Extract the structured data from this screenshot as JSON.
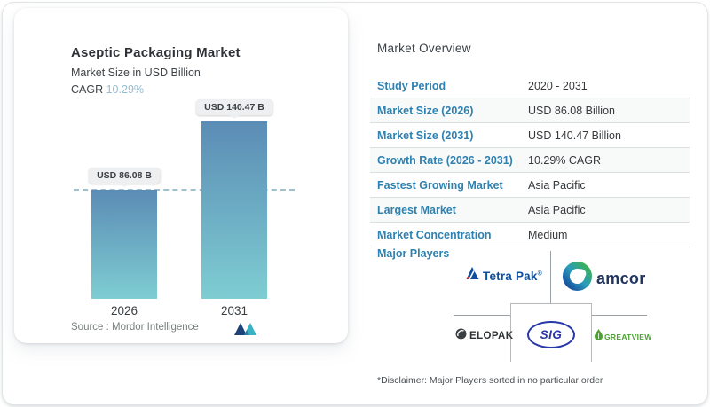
{
  "chart_card": {
    "title": "Aseptic Packaging Market",
    "subtitle": "Market Size in USD Billion",
    "cagr_label": "CAGR",
    "cagr_value": "10.29%",
    "source_label": "Source :",
    "source_name": "Mordor Intelligence"
  },
  "chart_data": {
    "type": "bar",
    "title": "Aseptic Packaging Market",
    "ylabel": "Market Size in USD Billion",
    "unit": "USD Billion",
    "cagr_percent": "10.29%",
    "categories": [
      "2026",
      "2031"
    ],
    "values": [
      86.08,
      140.47
    ],
    "bar_labels": [
      "USD 86.08 B",
      "USD 140.47 B"
    ],
    "reference_line_value": 86.08,
    "grid": false,
    "legend": "none",
    "bar_gradient_top": "#5b8cb5",
    "bar_gradient_bottom": "#7ecdd2"
  },
  "overview": {
    "heading": "Market Overview",
    "rows": [
      {
        "label": "Study Period",
        "value": "2020 - 2031"
      },
      {
        "label": "Market Size (2026)",
        "value": "USD 86.08 Billion"
      },
      {
        "label": "Market Size (2031)",
        "value": "USD 140.47 Billion"
      },
      {
        "label": "Growth Rate (2026 - 2031)",
        "value": "10.29% CAGR"
      },
      {
        "label": "Fastest Growing Market",
        "value": "Asia Pacific"
      },
      {
        "label": "Largest Market",
        "value": "Asia Pacific"
      },
      {
        "label": "Market Concentration",
        "value": "Medium"
      }
    ],
    "major_players_label": "Major Players",
    "players": [
      {
        "name": "Tetra Pak",
        "reg_mark": "®"
      },
      {
        "name": "amcor"
      },
      {
        "name": "ELOPAK"
      },
      {
        "name": "SIG"
      },
      {
        "name": "GREATVIEW"
      }
    ],
    "disclaimer": "*Disclaimer: Major Players sorted in no particular order"
  },
  "colors": {
    "accent_blue": "#2e81b0",
    "cagr_light_blue": "#96becf",
    "bar_top": "#5b8cb5",
    "bar_bottom": "#7ecdd2",
    "dashed_line": "#9fc0cc",
    "tetra_pak_blue": "#0d4f9e",
    "amcor_navy": "#21355e",
    "sig_blue": "#2838a8",
    "greatview_green": "#4da233",
    "elopak_dark": "#303335"
  }
}
